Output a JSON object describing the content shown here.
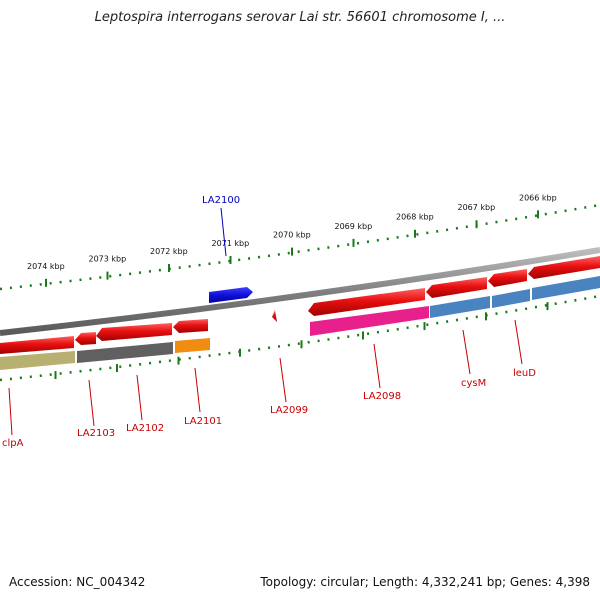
{
  "title": "Leptospira interrogans serovar Lai str. 56601 chromosome I, ...",
  "footer": {
    "accession": "Accession: NC_004342",
    "topology": "Topology: circular; Length: 4,332,241 bp; Genes: 4,398"
  },
  "colors": {
    "backbone": "#808080",
    "tick": "#1a7a1a",
    "forward_gene": "#1010d8",
    "reverse_gene": "#e81010",
    "label_reverse": "#c80000",
    "label_forward": "#0000c0"
  },
  "chart_data": {
    "type": "genome_map",
    "scale_labels": [
      "2074 kbp",
      "2073 kbp",
      "2072 kbp",
      "2071 kbp",
      "2070 kbp",
      "2069 kbp",
      "2068 kbp",
      "2067 kbp",
      "2066 kbp"
    ],
    "genes": [
      {
        "name": "clpA",
        "strand": "reverse",
        "category_color": "#b8b070"
      },
      {
        "name": "LA2103",
        "strand": "reverse",
        "category_color": "#606060"
      },
      {
        "name": "LA2102",
        "strand": "reverse",
        "category_color": "#606060"
      },
      {
        "name": "LA2101",
        "strand": "reverse",
        "category_color": "#f08c10"
      },
      {
        "name": "LA2100",
        "strand": "forward",
        "category_color": ""
      },
      {
        "name": "LA2099",
        "strand": "reverse",
        "category_color": ""
      },
      {
        "name": "LA2098",
        "strand": "reverse",
        "category_color": "#e8208c"
      },
      {
        "name": "cysM",
        "strand": "reverse",
        "category_color": "#4a84c0"
      },
      {
        "name": "leuD",
        "strand": "reverse",
        "category_color": "#4a84c0"
      }
    ]
  }
}
